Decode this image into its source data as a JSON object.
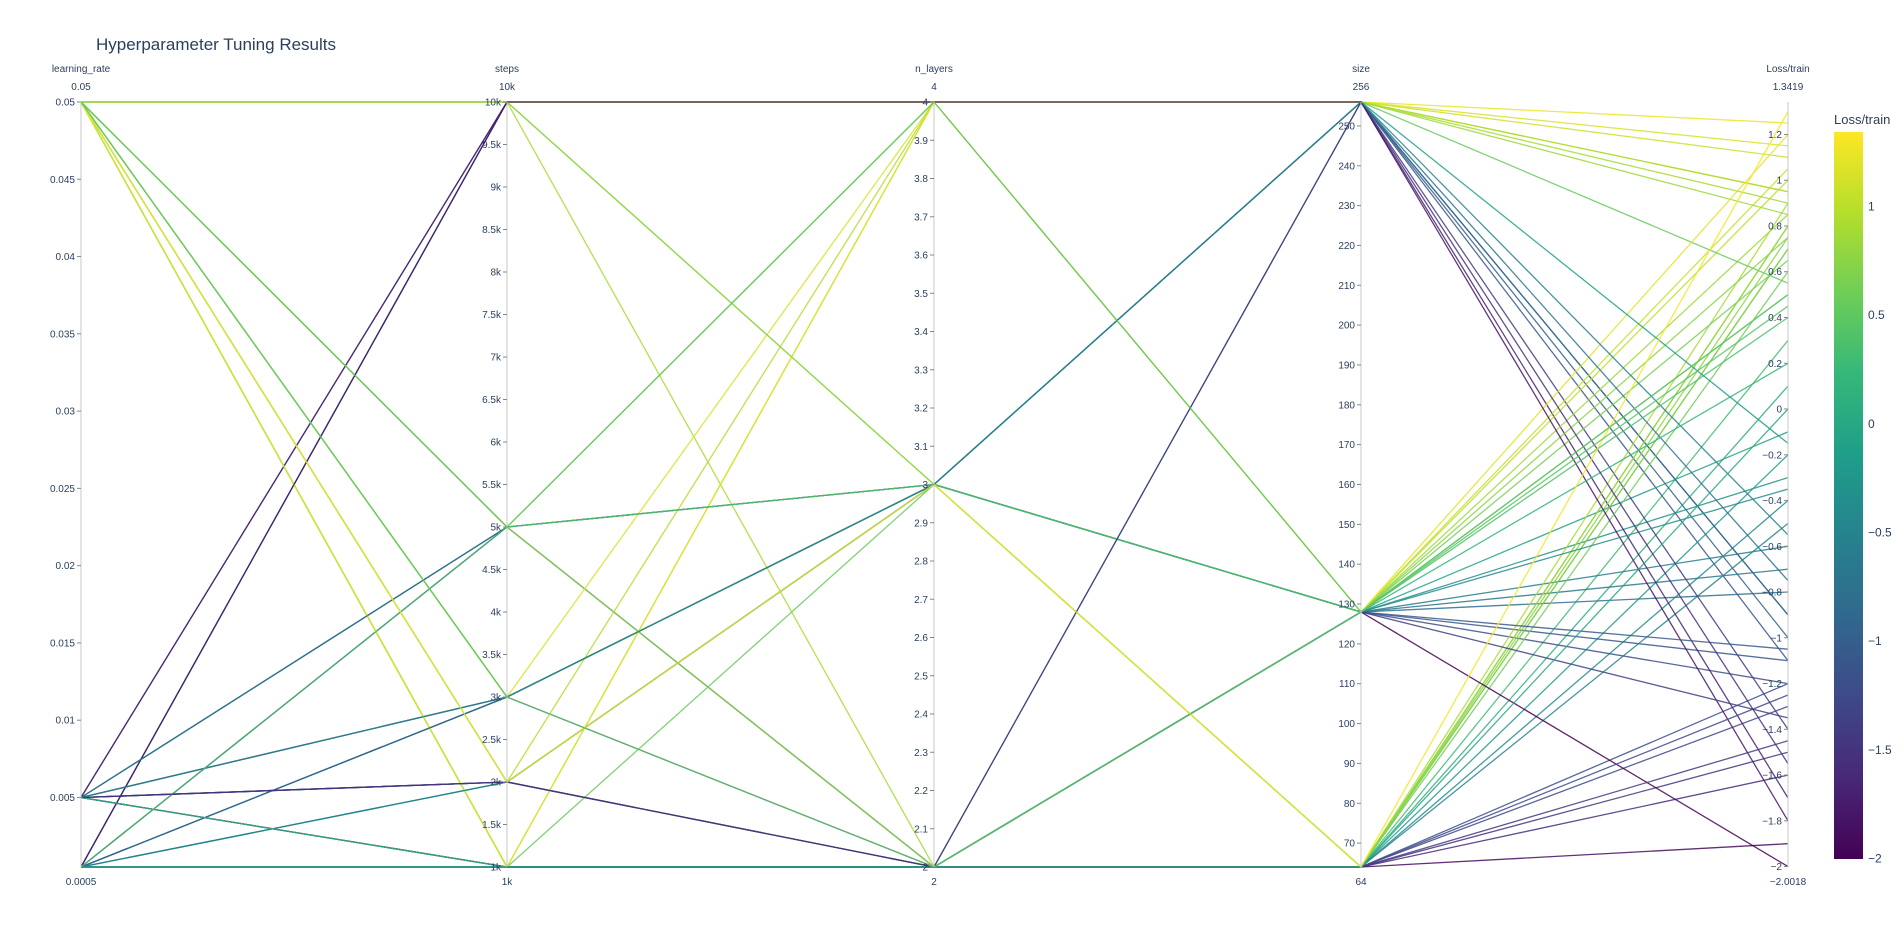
{
  "chart_data": {
    "type": "parallel_coordinates",
    "title": "Hyperparameter Tuning Results",
    "dimensions": [
      {
        "name": "learning_rate",
        "range": [
          0.0005,
          0.05
        ],
        "range_labels": [
          "0.0005",
          "0.05"
        ],
        "ticks": [
          0.005,
          0.01,
          0.015,
          0.02,
          0.025,
          0.03,
          0.035,
          0.04,
          0.045,
          0.05
        ],
        "tick_labels": [
          "0.005",
          "0.01",
          "0.015",
          "0.02",
          "0.025",
          "0.03",
          "0.035",
          "0.04",
          "0.045",
          "0.05"
        ]
      },
      {
        "name": "steps",
        "range": [
          1000,
          10000
        ],
        "range_labels": [
          "1k",
          "10k"
        ],
        "ticks": [
          1000,
          1500,
          2000,
          2500,
          3000,
          3500,
          4000,
          4500,
          5000,
          5500,
          6000,
          6500,
          7000,
          7500,
          8000,
          8500,
          9000,
          9500,
          10000
        ],
        "tick_labels": [
          "1k",
          "1.5k",
          "2k",
          "2.5k",
          "3k",
          "3.5k",
          "4k",
          "4.5k",
          "5k",
          "5.5k",
          "6k",
          "6.5k",
          "7k",
          "7.5k",
          "8k",
          "8.5k",
          "9k",
          "9.5k",
          "10k"
        ]
      },
      {
        "name": "n_layers",
        "range": [
          2,
          4
        ],
        "range_labels": [
          "2",
          "4"
        ],
        "ticks": [
          2,
          2.1,
          2.2,
          2.3,
          2.4,
          2.5,
          2.6,
          2.7,
          2.8,
          2.9,
          3,
          3.1,
          3.2,
          3.3,
          3.4,
          3.5,
          3.6,
          3.7,
          3.8,
          3.9,
          4
        ],
        "tick_labels": [
          "2",
          "2.1",
          "2.2",
          "2.3",
          "2.4",
          "2.5",
          "2.6",
          "2.7",
          "2.8",
          "2.9",
          "3",
          "3.1",
          "3.2",
          "3.3",
          "3.4",
          "3.5",
          "3.6",
          "3.7",
          "3.8",
          "3.9",
          "4"
        ]
      },
      {
        "name": "size",
        "range": [
          64,
          256
        ],
        "range_labels": [
          "64",
          "256"
        ],
        "ticks": [
          70,
          80,
          90,
          100,
          110,
          120,
          130,
          140,
          150,
          160,
          170,
          180,
          190,
          200,
          210,
          220,
          230,
          240,
          250
        ],
        "tick_labels": [
          "70",
          "80",
          "90",
          "100",
          "110",
          "120",
          "130",
          "140",
          "150",
          "160",
          "170",
          "180",
          "190",
          "200",
          "210",
          "220",
          "230",
          "240",
          "250"
        ]
      },
      {
        "name": "Loss/train",
        "range": [
          -2.0018,
          1.3419
        ],
        "range_labels": [
          "−2.0018",
          "1.3419"
        ],
        "ticks": [
          -2,
          -1.8,
          -1.6,
          -1.4,
          -1.2,
          -1,
          -0.8,
          -0.6,
          -0.4,
          -0.2,
          0,
          0.2,
          0.4,
          0.6,
          0.8,
          1,
          1.2
        ],
        "tick_labels": [
          "−2",
          "−1.8",
          "−1.6",
          "−1.4",
          "−1.2",
          "−1",
          "−0.8",
          "−0.6",
          "−0.4",
          "−0.2",
          "0",
          "0.2",
          "0.4",
          "0.6",
          "0.8",
          "1",
          "1.2"
        ]
      }
    ],
    "colorbar": {
      "title": "Loss/train",
      "range": [
        -2.0018,
        1.3419
      ],
      "ticks": [
        -2,
        -1.5,
        -1,
        -0.5,
        0,
        0.5,
        1
      ],
      "tick_labels": [
        "−2",
        "−1.5",
        "−1",
        "−0.5",
        "0",
        "0.5",
        "1"
      ],
      "colorscale": [
        "#440154",
        "#482878",
        "#3e4989",
        "#31688e",
        "#26828e",
        "#1f9e89",
        "#35b779",
        "#6ece58",
        "#b5de2b",
        "#fde725"
      ]
    },
    "trials": [
      [
        0.0005,
        1000,
        2,
        64,
        -1.5
      ],
      [
        0.0005,
        1000,
        2,
        64,
        -1.2
      ],
      [
        0.0005,
        1000,
        2,
        64,
        0.1
      ],
      [
        0.0005,
        1000,
        2,
        64,
        0.3
      ],
      [
        0.0005,
        1000,
        2,
        64,
        0.7
      ],
      [
        0.0005,
        1000,
        2,
        128,
        0.5
      ],
      [
        0.0005,
        10000,
        4,
        256,
        -1.1
      ],
      [
        0.0005,
        10000,
        4,
        256,
        -0.9
      ],
      [
        0.0005,
        2000,
        3,
        128,
        -0.1
      ],
      [
        0.0005,
        2000,
        2,
        128,
        -0.3
      ],
      [
        0.0005,
        3000,
        3,
        128,
        -0.6
      ],
      [
        0.0005,
        3000,
        3,
        64,
        -0.2
      ],
      [
        0.0005,
        5000,
        3,
        256,
        -1.0
      ],
      [
        0.0005,
        5000,
        2,
        64,
        -1.3
      ],
      [
        0.005,
        1000,
        2,
        64,
        -0.4
      ],
      [
        0.005,
        1000,
        2,
        128,
        -0.8
      ],
      [
        0.005,
        2000,
        2,
        128,
        -1.1
      ],
      [
        0.005,
        2000,
        3,
        128,
        -0.7
      ],
      [
        0.005,
        3000,
        3,
        256,
        -0.9
      ],
      [
        0.005,
        3000,
        2,
        64,
        -1.6
      ],
      [
        0.005,
        5000,
        3,
        128,
        -1.2
      ],
      [
        0.005,
        5000,
        2,
        64,
        -0.5
      ],
      [
        0.005,
        10000,
        4,
        256,
        -1.4
      ],
      [
        0.005,
        10000,
        4,
        256,
        -1.7
      ],
      [
        0.05,
        10000,
        4,
        256,
        1.25
      ],
      [
        0.05,
        10000,
        4,
        256,
        1.1
      ],
      [
        0.05,
        10000,
        4,
        128,
        1.0
      ],
      [
        0.05,
        10000,
        4,
        256,
        0.95
      ],
      [
        0.05,
        10000,
        3,
        128,
        0.85
      ],
      [
        0.05,
        10000,
        2,
        64,
        0.9
      ],
      [
        0.05,
        5000,
        3,
        128,
        1.05
      ],
      [
        0.05,
        5000,
        4,
        256,
        0.9
      ],
      [
        0.05,
        5000,
        2,
        64,
        0.8
      ],
      [
        0.05,
        3000,
        4,
        256,
        1.15
      ],
      [
        0.05,
        3000,
        3,
        128,
        0.75
      ],
      [
        0.05,
        3000,
        3,
        64,
        0.7
      ],
      [
        0.05,
        2000,
        4,
        256,
        0.95
      ],
      [
        0.05,
        2000,
        3,
        128,
        0.65
      ],
      [
        0.05,
        2000,
        2,
        64,
        0.6
      ],
      [
        0.05,
        1000,
        4,
        256,
        0.85
      ],
      [
        0.05,
        1000,
        3,
        256,
        0.55
      ],
      [
        0.05,
        1000,
        2,
        64,
        0.8
      ],
      [
        0.05,
        1000,
        4,
        128,
        1.2
      ],
      [
        0.05,
        10000,
        3,
        64,
        0.75
      ],
      [
        0.0005,
        1000,
        2,
        64,
        -1.9
      ],
      [
        0.005,
        1000,
        2,
        128,
        -2.0
      ],
      [
        0.0005,
        10000,
        4,
        256,
        -1.8
      ],
      [
        0.005,
        2000,
        2,
        64,
        -1.45
      ],
      [
        0.0005,
        3000,
        3,
        128,
        -1.05
      ],
      [
        0.005,
        5000,
        3,
        256,
        -0.75
      ],
      [
        0.0005,
        1000,
        2,
        128,
        -1.35
      ],
      [
        0.005,
        1000,
        2,
        64,
        -1.25
      ],
      [
        0.0005,
        2000,
        3,
        256,
        -0.55
      ],
      [
        0.005,
        3000,
        3,
        128,
        -0.35
      ],
      [
        0.0005,
        1000,
        2,
        64,
        0.0
      ],
      [
        0.005,
        1000,
        2,
        128,
        0.2
      ],
      [
        0.0005,
        5000,
        3,
        128,
        0.4
      ],
      [
        0.0005,
        1000,
        2,
        256,
        -0.15
      ],
      [
        0.005,
        2000,
        2,
        256,
        -1.55
      ],
      [
        0.05,
        2000,
        3,
        64,
        1.3
      ],
      [
        0.05,
        3000,
        2,
        128,
        0.5
      ],
      [
        0.05,
        5000,
        4,
        128,
        0.45
      ]
    ]
  }
}
